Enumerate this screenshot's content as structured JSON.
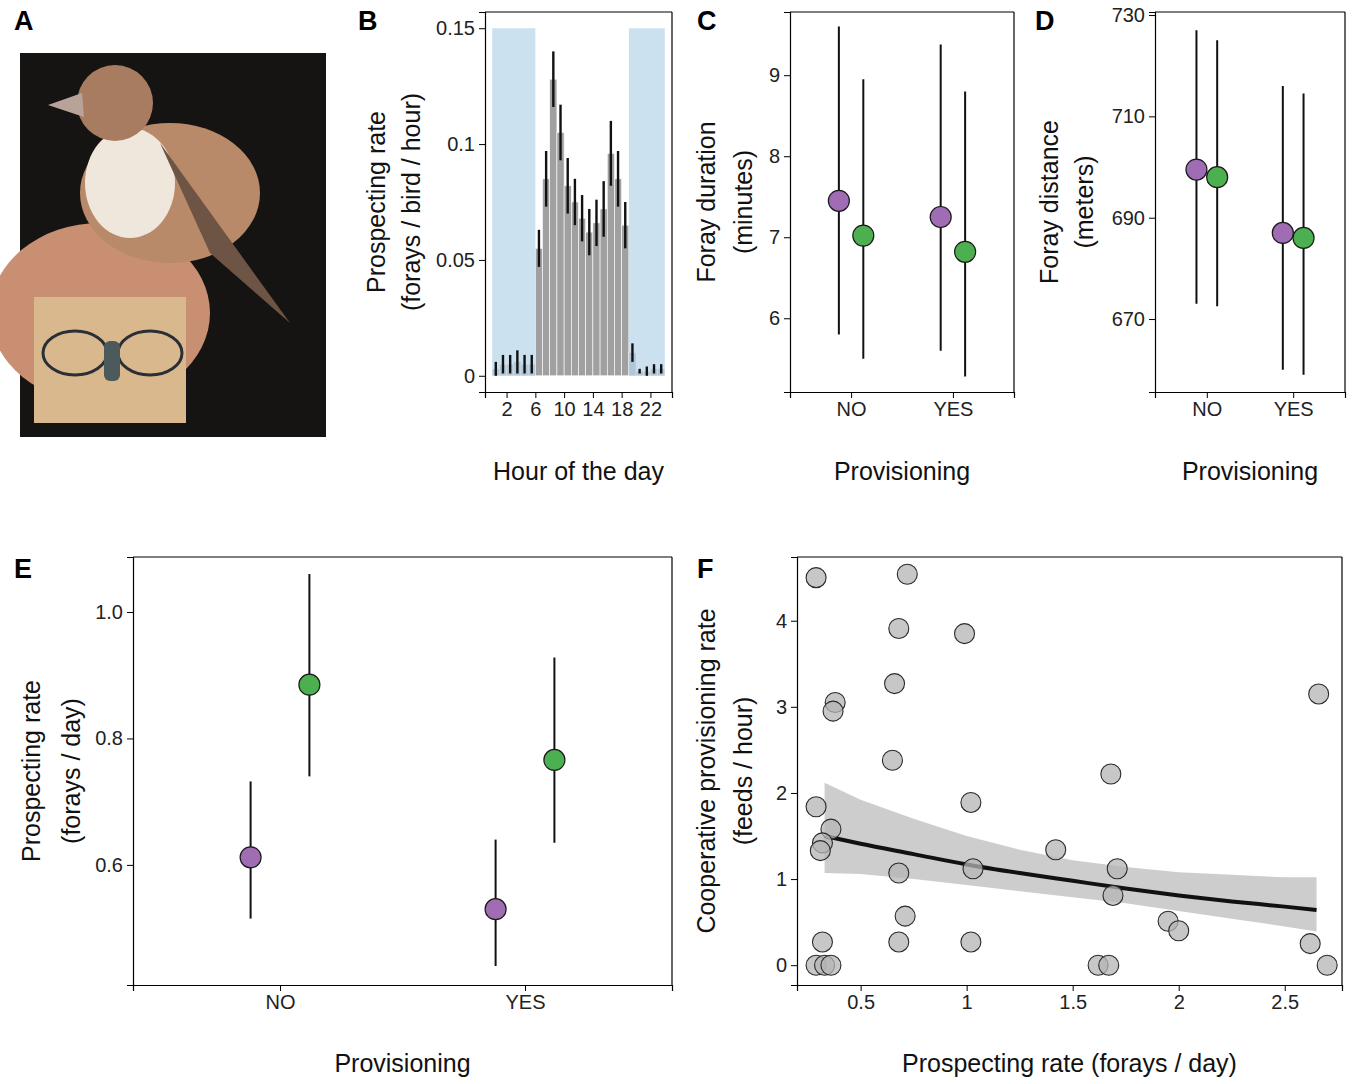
{
  "chart_data": [
    {
      "type": "image",
      "panel": "A"
    },
    {
      "type": "bar",
      "panel": "B",
      "xlabel": "Hour of the day",
      "ylabel": [
        "Prospecting rate",
        "(forays / bird / hour)"
      ],
      "bins": [
        0,
        1,
        2,
        3,
        4,
        5,
        6,
        7,
        8,
        9,
        10,
        11,
        12,
        13,
        14,
        15,
        16,
        17,
        18,
        19,
        20,
        21,
        22,
        23,
        24
      ],
      "values": [
        0.003,
        0.005,
        0.005,
        0.006,
        0.005,
        0.005,
        0.055,
        0.085,
        0.128,
        0.105,
        0.082,
        0.075,
        0.068,
        0.062,
        0.066,
        0.072,
        0.096,
        0.085,
        0.065,
        0.01,
        0.002,
        0.002,
        0.003,
        0.003
      ],
      "errors": [
        0.003,
        0.004,
        0.004,
        0.005,
        0.004,
        0.004,
        0.008,
        0.012,
        0.012,
        0.012,
        0.012,
        0.01,
        0.01,
        0.01,
        0.01,
        0.012,
        0.014,
        0.012,
        0.01,
        0.004,
        0.001,
        0.002,
        0.002,
        0.002
      ],
      "color": "#a0a0a0",
      "shaded_ranges": [
        {
          "x": [
            0,
            6
          ],
          "y": [
            0,
            0.15
          ]
        },
        {
          "x": [
            19,
            24
          ],
          "y": [
            0,
            0.15
          ]
        }
      ],
      "xlim": [
        -1,
        25
      ],
      "xticks": [
        2,
        6,
        10,
        14,
        18,
        22
      ],
      "ylim": [
        -0.007,
        0.157
      ],
      "yticks": [
        0,
        0.05,
        0.1,
        0.15
      ]
    },
    {
      "type": "dot",
      "panel": "C",
      "xlabel": "Provisioning",
      "ylabel": [
        "Foray duration",
        "(minutes)"
      ],
      "categories": [
        "NO",
        "YES"
      ],
      "series": [
        {
          "color": "#a06cb4",
          "values": [
            7.45,
            7.25
          ],
          "lower": [
            5.8,
            5.6
          ],
          "upper": [
            9.6,
            9.38
          ]
        },
        {
          "color": "#4caf50",
          "values": [
            7.02,
            6.82
          ],
          "lower": [
            5.5,
            5.28
          ],
          "upper": [
            8.95,
            8.8
          ]
        }
      ],
      "ylim": [
        5.09,
        9.78
      ],
      "yticks": [
        6,
        7,
        8,
        9
      ]
    },
    {
      "type": "dot",
      "panel": "D",
      "xlabel": "Provisioning",
      "ylabel": [
        "Foray distance",
        "(meters)"
      ],
      "categories": [
        "NO",
        "YES"
      ],
      "series": [
        {
          "color": "#a06cb4",
          "values": [
            699.5,
            687
          ],
          "lower": [
            673,
            660
          ],
          "upper": [
            727,
            716
          ]
        },
        {
          "color": "#4caf50",
          "values": [
            698,
            686
          ],
          "lower": [
            672.5,
            659
          ],
          "upper": [
            725,
            714.5
          ]
        }
      ],
      "ylim": [
        655.6,
        730.6
      ],
      "yticks": [
        670,
        690,
        710,
        730
      ]
    },
    {
      "type": "dot",
      "panel": "E",
      "xlabel": "Provisioning",
      "ylabel": [
        "Prospecting rate",
        "(forays / day)"
      ],
      "categories": [
        "NO",
        "YES"
      ],
      "series": [
        {
          "color": "#a06cb4",
          "values": [
            0.612,
            0.53
          ],
          "lower": [
            0.515,
            0.44
          ],
          "upper": [
            0.732,
            0.64
          ]
        },
        {
          "color": "#4caf50",
          "values": [
            0.885,
            0.766
          ],
          "lower": [
            0.74,
            0.635
          ],
          "upper": [
            1.06,
            0.928
          ]
        }
      ],
      "ylim": [
        0.41,
        1.087
      ],
      "yticks": [
        0.6,
        0.8,
        {
          "value": 1,
          "label": "1.0"
        }
      ]
    },
    {
      "type": "scatter",
      "panel": "F",
      "xlabel": "Prospecting rate (forays / day)",
      "ylabel": [
        "Cooperative provisioning rate",
        "(feeds / hour)"
      ],
      "series": [
        {
          "type": "scatter",
          "color": "#b4b4b4",
          "x": [
            0.29,
            0.72,
            0.38,
            0.37,
            0.68,
            0.99,
            0.66,
            0.65,
            0.29,
            0.36,
            0.32,
            0.31,
            0.68,
            0.71,
            0.68,
            0.32,
            0.29,
            0.33,
            0.36,
            1.02,
            1.03,
            1.02,
            1.42,
            1.68,
            1.71,
            1.69,
            1.62,
            1.67,
            1.95,
            2.0,
            2.66,
            2.62,
            2.7
          ],
          "values": [
            4.5,
            4.54,
            3.05,
            2.95,
            3.91,
            3.85,
            3.27,
            2.38,
            1.84,
            1.58,
            1.42,
            1.33,
            1.07,
            0.57,
            0.27,
            0.27,
            0,
            0,
            0,
            1.89,
            1.12,
            0.27,
            1.34,
            2.22,
            1.12,
            0.81,
            0,
            0,
            0.51,
            0.4,
            3.15,
            0.25,
            0
          ]
        },
        {
          "type": "line",
          "color": "#111111",
          "x": [
            0.33,
            0.5,
            0.75,
            1,
            1.25,
            1.5,
            1.75,
            2,
            2.25,
            2.5,
            2.65
          ],
          "values": [
            1.5,
            1.41,
            1.29,
            1.17,
            1.07,
            0.98,
            0.89,
            0.81,
            0.74,
            0.68,
            0.64
          ],
          "lower": [
            1.07,
            1.06,
            1.0,
            0.93,
            0.86,
            0.79,
            0.72,
            0.63,
            0.54,
            0.45,
            0.39
          ],
          "upper": [
            2.12,
            1.92,
            1.7,
            1.5,
            1.34,
            1.22,
            1.14,
            1.08,
            1.05,
            1.02,
            1.02
          ]
        }
      ],
      "xlim": [
        0.2,
        2.77
      ],
      "xticks": [
        0.5,
        1,
        1.5,
        2,
        2.5
      ],
      "ylim": [
        -0.23,
        4.74
      ],
      "yticks": [
        0,
        1,
        2,
        3,
        4
      ]
    }
  ]
}
